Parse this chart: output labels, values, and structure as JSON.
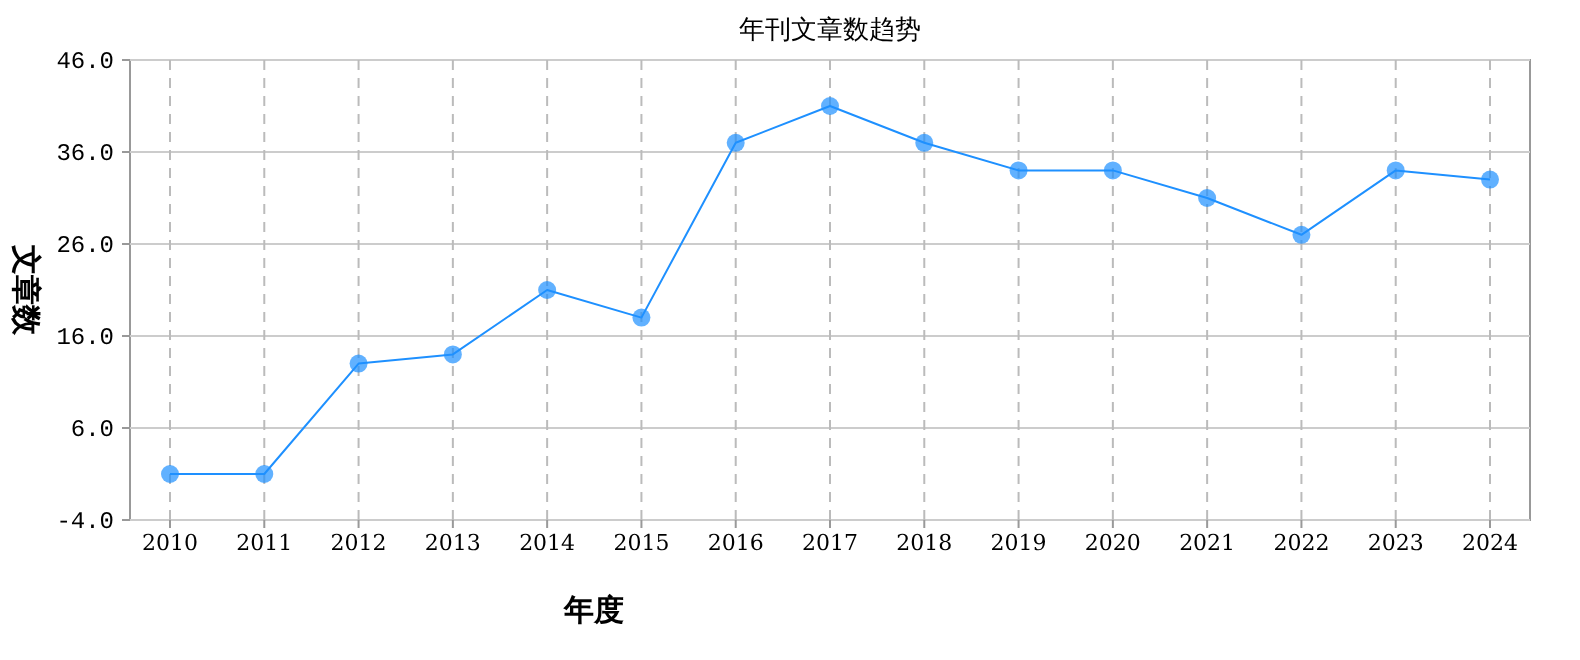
{
  "chart_data": {
    "type": "line",
    "title": "年刊文章数趋势",
    "xlabel": "年度",
    "ylabel": "文章数",
    "categories": [
      "2010",
      "2011",
      "2012",
      "2013",
      "2014",
      "2015",
      "2016",
      "2017",
      "2018",
      "2019",
      "2020",
      "2021",
      "2022",
      "2023",
      "2024"
    ],
    "series": [
      {
        "color": "#1e90ff",
        "values": [
          1,
          1,
          13,
          14,
          21,
          18,
          37,
          41,
          37,
          34,
          34,
          31,
          27,
          34,
          33
        ]
      }
    ],
    "ylim": [
      -4,
      46
    ],
    "yticks": [
      {
        "value": -4,
        "label": "-4.0"
      },
      {
        "value": 6,
        "label": "6.0"
      },
      {
        "value": 16,
        "label": "16.0"
      },
      {
        "value": 26,
        "label": "26.0"
      },
      {
        "value": 36,
        "label": "36.0"
      },
      {
        "value": 46,
        "label": "46.0"
      }
    ],
    "grid": true,
    "marker": "circle",
    "line_style": "solid"
  }
}
